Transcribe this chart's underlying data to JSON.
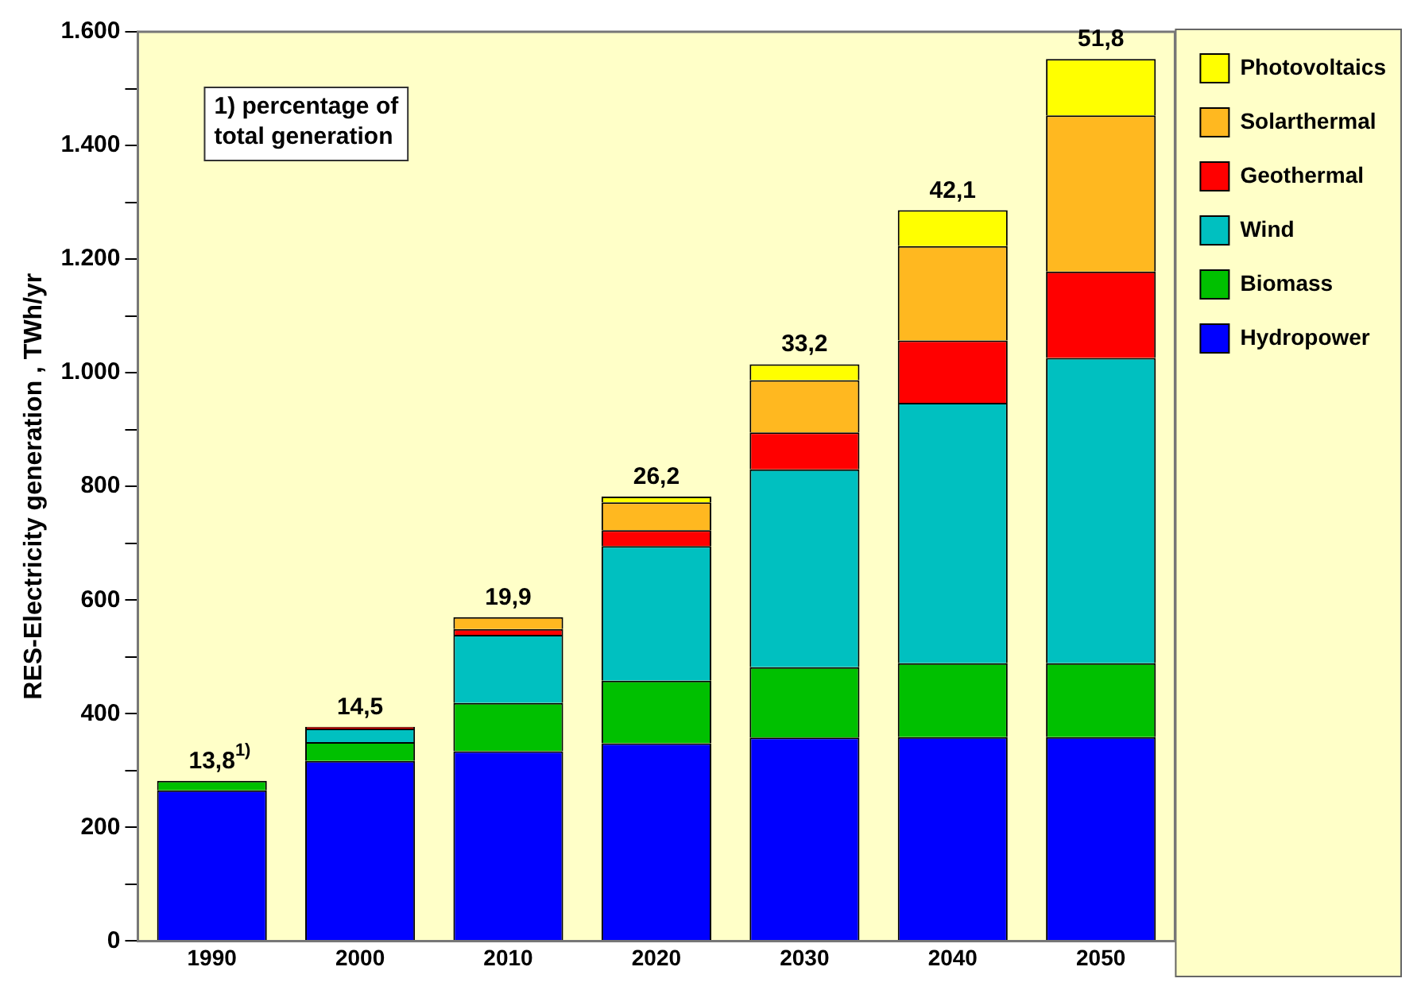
{
  "chart_data": {
    "type": "bar",
    "stacked": true,
    "ylabel": "RES-Electricity generation , TWh/yr",
    "categories": [
      "1990",
      "2000",
      "2010",
      "2020",
      "2030",
      "2040",
      "2050"
    ],
    "series": [
      {
        "name": "Hydropower",
        "color": "#0000ff",
        "values": [
          265,
          317,
          334,
          348,
          358,
          359,
          359
        ]
      },
      {
        "name": "Biomass",
        "color": "#00c000",
        "values": [
          17,
          33,
          85,
          110,
          124,
          130,
          130
        ]
      },
      {
        "name": "Wind",
        "color": "#00c0c0",
        "values": [
          0,
          24,
          120,
          237,
          348,
          458,
          537
        ]
      },
      {
        "name": "Geothermal",
        "color": "#ff0000",
        "values": [
          0,
          3,
          10,
          28,
          65,
          110,
          152
        ]
      },
      {
        "name": "Solarthermal",
        "color": "#ffb820",
        "values": [
          0,
          0,
          21,
          49,
          92,
          166,
          275
        ]
      },
      {
        "name": "Photovoltaics",
        "color": "#ffff00",
        "values": [
          0,
          0,
          0,
          10,
          28,
          63,
          99
        ]
      }
    ],
    "ylim": [
      0,
      1600
    ],
    "yticks": [
      0,
      {
        "value": 100,
        "label": null
      },
      200,
      {
        "value": 300,
        "label": null
      },
      400,
      {
        "value": 500,
        "label": null
      },
      600,
      {
        "value": 700,
        "label": null
      },
      800,
      {
        "value": 900,
        "label": null
      },
      {
        "value": 1000,
        "label": "1.000"
      },
      {
        "value": 1100,
        "label": null
      },
      {
        "value": 1200,
        "label": "1.200"
      },
      {
        "value": 1300,
        "label": null
      },
      {
        "value": 1400,
        "label": "1.400"
      },
      {
        "value": 1500,
        "label": null
      },
      {
        "value": 1600,
        "label": "1.600"
      }
    ],
    "grid": false,
    "legend": "top right",
    "annotations": [
      {
        "text": "13,8$^{1)}$",
        "x": "1990",
        "y": 282
      },
      {
        "text": "14,5",
        "x": "2000",
        "y": 377
      },
      {
        "text": "19,9",
        "x": "2010",
        "y": 570
      },
      {
        "text": "26,2",
        "x": "2020",
        "y": 782
      },
      {
        "text": "33,2",
        "x": "2030",
        "y": 1015
      },
      {
        "text": "42,1",
        "x": "2040",
        "y": 1286
      },
      {
        "text": "51,8",
        "x": "2050",
        "y": 1552
      },
      "1) percentage of total generation"
    ]
  }
}
